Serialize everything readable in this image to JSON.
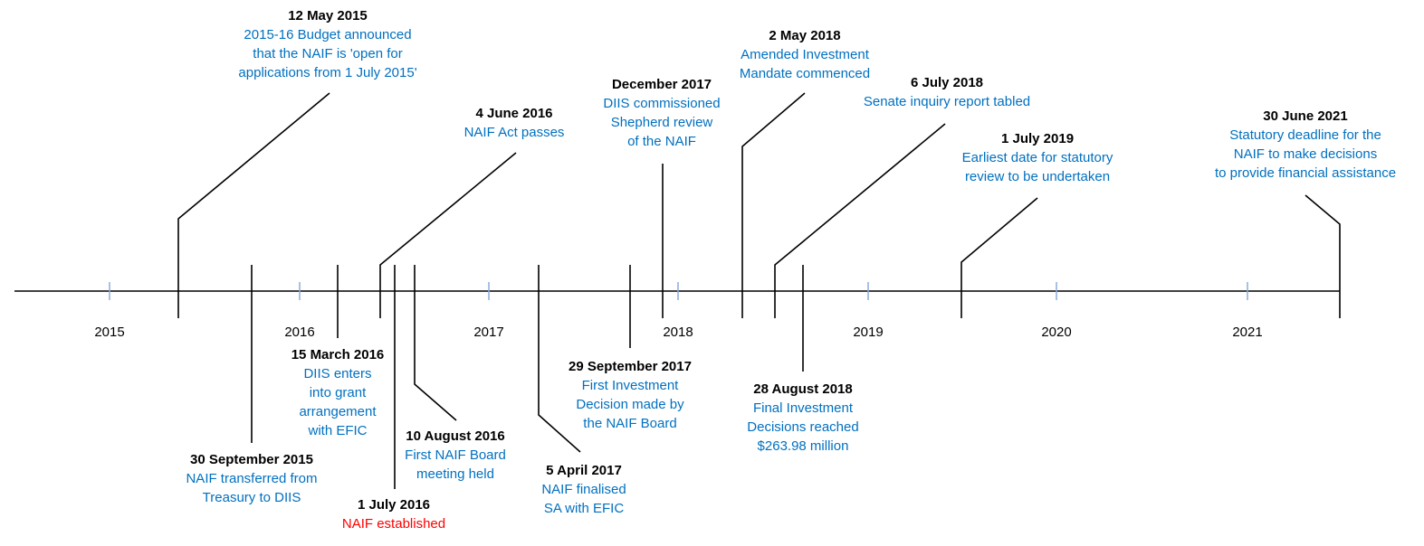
{
  "years": [
    "2015",
    "2016",
    "2017",
    "2018",
    "2019",
    "2020",
    "2021"
  ],
  "events": [
    {
      "id": "budget",
      "date": "12 May 2015",
      "lines": [
        "2015-16 Budget announced",
        "that the NAIF is 'open for",
        "applications from 1 July 2015'"
      ]
    },
    {
      "id": "transferred",
      "date": "30 September 2015",
      "lines": [
        "NAIF transferred from",
        "Treasury to DIIS"
      ]
    },
    {
      "id": "grant",
      "date": "15 March 2016",
      "lines": [
        "DIIS enters",
        "into grant",
        "arrangement",
        "with EFIC"
      ]
    },
    {
      "id": "act",
      "date": "4 June 2016",
      "lines": [
        "NAIF Act passes"
      ]
    },
    {
      "id": "established",
      "date": "1 July 2016",
      "lines": [
        "NAIF established"
      ]
    },
    {
      "id": "board-meeting",
      "date": "10 August 2016",
      "lines": [
        "First NAIF Board",
        "meeting held"
      ]
    },
    {
      "id": "sa-finalised",
      "date": "5 April 2017",
      "lines": [
        "NAIF finalised",
        "SA with EFIC"
      ]
    },
    {
      "id": "first-decision",
      "date": "29 September 2017",
      "lines": [
        "First Investment",
        "Decision made by",
        "the NAIF Board"
      ]
    },
    {
      "id": "shepherd",
      "date": "December 2017",
      "lines": [
        "DIIS commissioned",
        "Shepherd review",
        "of the NAIF"
      ]
    },
    {
      "id": "mandate",
      "date": "2 May 2018",
      "lines": [
        "Amended Investment",
        "Mandate commenced"
      ]
    },
    {
      "id": "senate",
      "date": "6 July 2018",
      "lines": [
        "Senate inquiry report tabled"
      ]
    },
    {
      "id": "final-decisions",
      "date": "28 August 2018",
      "lines": [
        "Final Investment",
        "Decisions reached",
        "$263.98 million"
      ]
    },
    {
      "id": "statutory-review",
      "date": "1 July 2019",
      "lines": [
        "Earliest date for statutory",
        "review to be undertaken"
      ]
    },
    {
      "id": "deadline",
      "date": "30 June 2021",
      "lines": [
        "Statutory deadline for the",
        "NAIF to make decisions",
        "to provide financial assistance"
      ]
    }
  ],
  "colors": {
    "axis": "#000000",
    "tick": "#8eaadb",
    "date": "#000000",
    "desc": "#0070c0",
    "highlight": "#ff0000"
  }
}
